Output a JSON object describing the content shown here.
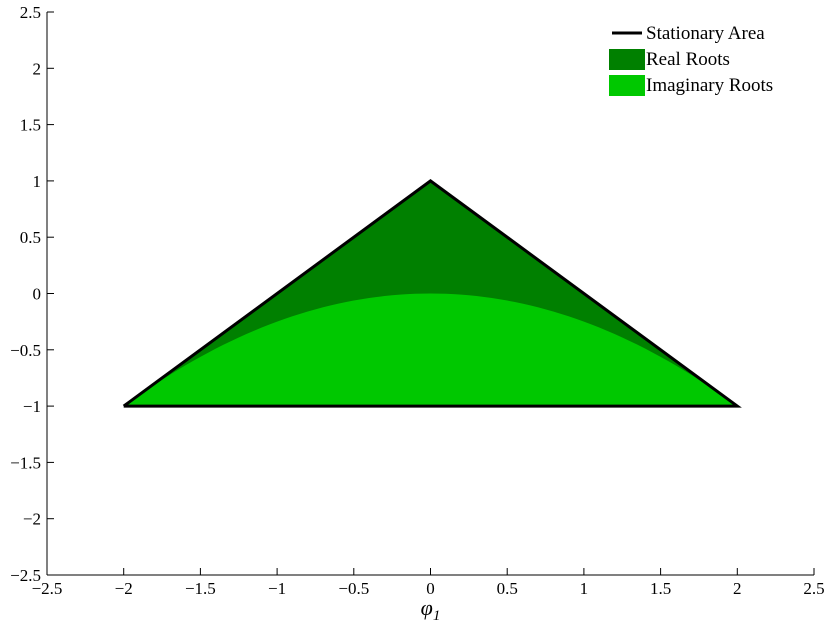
{
  "chart_data": {
    "type": "area",
    "xlabel": "φ",
    "xlabel_subscript": "1",
    "ylabel": "",
    "title": "",
    "xlim": [
      -2.5,
      2.5
    ],
    "ylim": [
      -2.5,
      2.5
    ],
    "xticks": [
      -2.5,
      -2,
      -1.5,
      -1,
      -0.5,
      0,
      0.5,
      1,
      1.5,
      2,
      2.5
    ],
    "yticks": [
      -2.5,
      -2,
      -1.5,
      -1,
      -0.5,
      0,
      0.5,
      1,
      1.5,
      2,
      2.5
    ],
    "xtick_labels": [
      "−2.5",
      "−2",
      "−1.5",
      "−1",
      "−0.5",
      "0",
      "0.5",
      "1",
      "1.5",
      "2",
      "2.5"
    ],
    "ytick_labels": [
      "−2.5",
      "−2",
      "−1.5",
      "−1",
      "−0.5",
      "0",
      "0.5",
      "1",
      "1.5",
      "2",
      "2.5"
    ],
    "grid": false,
    "legend_position": "top-right",
    "series": [
      {
        "name": "Stationary Area",
        "kind": "line",
        "color": "#000000",
        "points": [
          [
            -2,
            -1
          ],
          [
            0,
            1
          ],
          [
            2,
            -1
          ],
          [
            -2,
            -1
          ]
        ]
      },
      {
        "name": "Real Roots",
        "kind": "fill",
        "color": "#008000",
        "region": "triangle above parabola",
        "points": [
          [
            -2,
            -1
          ],
          [
            0,
            1
          ],
          [
            2,
            -1
          ]
        ]
      },
      {
        "name": "Imaginary Roots",
        "kind": "fill",
        "color": "#00c800",
        "region": "between y = -1 and y = -x^2/4",
        "curve": "y = -x^2/4",
        "x_range": [
          -2,
          2
        ]
      }
    ]
  }
}
